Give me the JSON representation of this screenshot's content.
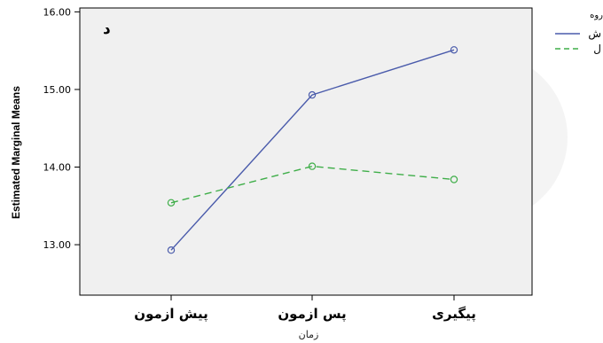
{
  "chart_data": {
    "type": "line",
    "panel_tag": "د",
    "categories": [
      "پیش ازمون",
      "پس ازمون",
      "پیگیری"
    ],
    "xlabel": "زمان",
    "ylabel": "Estimated Marginal Means",
    "ylim": [
      12.35,
      16.05
    ],
    "yticks": [
      "13.00",
      "14.00",
      "15.00",
      "16.00"
    ],
    "ytick_values": [
      13,
      14,
      15,
      16
    ],
    "grid": false,
    "legend": {
      "position": "top-right",
      "title": "روه",
      "items": [
        "ش",
        "ل"
      ]
    },
    "series": [
      {
        "name": "ش",
        "values": [
          12.93,
          14.93,
          15.51
        ],
        "color": "#4a5bab",
        "dash": "solid"
      },
      {
        "name": "ل",
        "values": [
          13.54,
          14.01,
          13.84
        ],
        "color": "#3fae49",
        "dash": "dashed"
      }
    ]
  }
}
